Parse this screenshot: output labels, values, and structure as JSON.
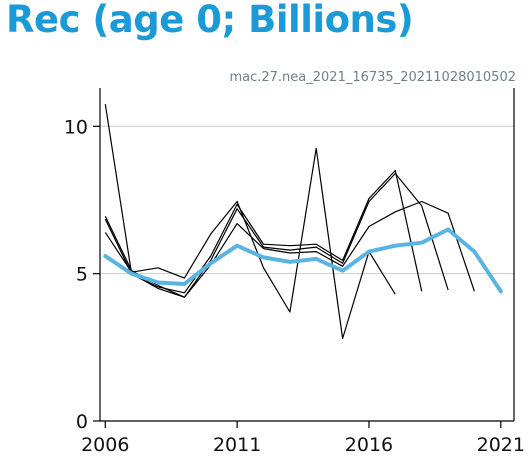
{
  "header": {
    "title": "Rec (age 0; Billions)",
    "subtitle": "mac.27.nea_2021_16735_20211028010502"
  },
  "chart_data": {
    "type": "line",
    "title": "Rec (age 0; Billions)",
    "xlabel": "",
    "ylabel": "",
    "xlim": [
      2005.8,
      2021.5
    ],
    "ylim": [
      0,
      11.3
    ],
    "x_ticks": [
      2006,
      2011,
      2016,
      2021
    ],
    "y_ticks": [
      0,
      5,
      10
    ],
    "grid": "horizontal",
    "colors": {
      "current": "#5ab4e2",
      "retro": "#000000",
      "grid": "#cccccc"
    },
    "current_assessment": {
      "x": [
        2006,
        2007,
        2008,
        2009,
        2010,
        2011,
        2012,
        2013,
        2014,
        2015,
        2016,
        2017,
        2018,
        2019,
        2020,
        2021
      ],
      "values": [
        5.6,
        5.0,
        4.7,
        4.65,
        5.35,
        5.95,
        5.55,
        5.4,
        5.5,
        5.1,
        5.75,
        5.95,
        6.05,
        6.5,
        5.75,
        4.4
      ]
    },
    "retrospective": [
      {
        "x": [
          2006,
          2007,
          2008,
          2009,
          2010,
          2011,
          2012,
          2013,
          2014,
          2015,
          2016,
          2017
        ],
        "values": [
          6.4,
          5.05,
          5.2,
          4.85,
          6.35,
          7.45,
          5.2,
          3.7,
          9.25,
          2.8,
          5.75,
          4.3
        ]
      },
      {
        "x": [
          2006,
          2007,
          2008,
          2009,
          2010,
          2011,
          2012,
          2013,
          2014,
          2015,
          2016,
          2017,
          2018
        ],
        "values": [
          10.75,
          5.0,
          4.55,
          4.35,
          5.6,
          7.35,
          6.0,
          5.95,
          6.0,
          5.45,
          7.55,
          8.5,
          4.4
        ]
      },
      {
        "x": [
          2006,
          2007,
          2008,
          2009,
          2010,
          2011,
          2012,
          2013,
          2014,
          2015,
          2016,
          2017,
          2018,
          2019
        ],
        "values": [
          6.95,
          5.1,
          4.6,
          4.2,
          5.45,
          7.2,
          5.9,
          5.8,
          5.9,
          5.35,
          7.45,
          8.4,
          7.3,
          4.45
        ]
      },
      {
        "x": [
          2006,
          2007,
          2008,
          2009,
          2010,
          2011,
          2012,
          2013,
          2014,
          2015,
          2016,
          2017,
          2018,
          2019,
          2020
        ],
        "values": [
          6.85,
          5.0,
          4.5,
          4.2,
          5.3,
          6.7,
          5.85,
          5.7,
          5.75,
          5.25,
          6.6,
          7.1,
          7.45,
          7.05,
          4.4
        ]
      }
    ]
  }
}
